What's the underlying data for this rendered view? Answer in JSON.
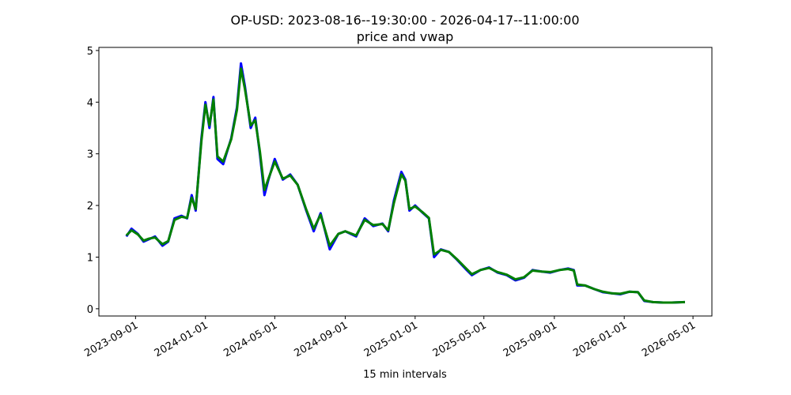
{
  "chart_data": {
    "type": "line",
    "title": "OP-USD: 2023-08-16--19:30:00 - 2026-04-17--11:00:00",
    "subtitle": "price and vwap",
    "x_label": "15 min intervals",
    "x": [
      "2023-08-16",
      "2023-08-25",
      "2023-09-05",
      "2023-09-15",
      "2023-09-25",
      "2023-10-05",
      "2023-10-18",
      "2023-10-28",
      "2023-11-08",
      "2023-11-20",
      "2023-11-30",
      "2023-12-08",
      "2023-12-15",
      "2023-12-25",
      "2024-01-01",
      "2024-01-08",
      "2024-01-15",
      "2024-01-22",
      "2024-02-01",
      "2024-02-15",
      "2024-02-25",
      "2024-03-03",
      "2024-03-10",
      "2024-03-20",
      "2024-03-28",
      "2024-04-05",
      "2024-04-13",
      "2024-04-20",
      "2024-05-01",
      "2024-05-15",
      "2024-05-28",
      "2024-06-10",
      "2024-06-25",
      "2024-07-08",
      "2024-07-20",
      "2024-08-05",
      "2024-08-20",
      "2024-09-01",
      "2024-09-20",
      "2024-10-05",
      "2024-10-20",
      "2024-11-05",
      "2024-11-15",
      "2024-11-25",
      "2024-12-08",
      "2024-12-15",
      "2024-12-22",
      "2025-01-01",
      "2025-01-15",
      "2025-01-25",
      "2025-02-03",
      "2025-02-15",
      "2025-03-01",
      "2025-03-15",
      "2025-04-01",
      "2025-04-10",
      "2025-04-25",
      "2025-05-10",
      "2025-05-25",
      "2025-06-10",
      "2025-06-25",
      "2025-07-10",
      "2025-07-25",
      "2025-08-10",
      "2025-08-25",
      "2025-09-10",
      "2025-09-25",
      "2025-10-05",
      "2025-10-11",
      "2025-10-25",
      "2025-11-10",
      "2025-11-25",
      "2025-12-10",
      "2025-12-25",
      "2026-01-10",
      "2026-01-25",
      "2026-02-05",
      "2026-02-20",
      "2026-03-10",
      "2026-03-25",
      "2026-04-17"
    ],
    "series": [
      {
        "color": "#0000ff",
        "values": [
          1.4,
          1.55,
          1.45,
          1.3,
          1.35,
          1.4,
          1.22,
          1.3,
          1.75,
          1.8,
          1.75,
          2.2,
          1.9,
          3.3,
          4.0,
          3.5,
          4.1,
          2.9,
          2.8,
          3.3,
          3.9,
          4.75,
          4.3,
          3.5,
          3.7,
          3.0,
          2.2,
          2.5,
          2.9,
          2.5,
          2.6,
          2.4,
          1.9,
          1.5,
          1.85,
          1.15,
          1.45,
          1.5,
          1.4,
          1.75,
          1.6,
          1.65,
          1.5,
          2.1,
          2.65,
          2.5,
          1.9,
          2.0,
          1.85,
          1.75,
          1.0,
          1.15,
          1.1,
          0.95,
          0.75,
          0.65,
          0.75,
          0.8,
          0.7,
          0.65,
          0.55,
          0.6,
          0.75,
          0.72,
          0.7,
          0.75,
          0.78,
          0.75,
          0.45,
          0.45,
          0.38,
          0.32,
          0.3,
          0.28,
          0.33,
          0.32,
          0.15,
          0.13,
          0.12,
          0.12,
          0.13
        ]
      },
      {
        "color": "#008000",
        "values": [
          1.42,
          1.52,
          1.44,
          1.32,
          1.36,
          1.38,
          1.25,
          1.31,
          1.72,
          1.78,
          1.76,
          2.15,
          1.93,
          3.25,
          3.95,
          3.55,
          4.05,
          2.95,
          2.85,
          3.28,
          3.85,
          4.65,
          4.25,
          3.55,
          3.65,
          3.05,
          2.3,
          2.52,
          2.85,
          2.52,
          2.58,
          2.4,
          1.92,
          1.55,
          1.82,
          1.22,
          1.45,
          1.5,
          1.42,
          1.72,
          1.62,
          1.64,
          1.52,
          2.05,
          2.6,
          2.48,
          1.93,
          1.98,
          1.86,
          1.76,
          1.05,
          1.14,
          1.1,
          0.96,
          0.77,
          0.67,
          0.75,
          0.79,
          0.71,
          0.66,
          0.57,
          0.61,
          0.74,
          0.72,
          0.71,
          0.75,
          0.77,
          0.74,
          0.47,
          0.45,
          0.38,
          0.33,
          0.3,
          0.29,
          0.33,
          0.32,
          0.16,
          0.13,
          0.12,
          0.12,
          0.13
        ]
      }
    ],
    "xlim": [
      "2023-06-29",
      "2026-06-03"
    ],
    "xticks": [
      "2023-09-01",
      "2024-01-01",
      "2024-05-01",
      "2024-09-01",
      "2025-01-01",
      "2025-05-01",
      "2025-09-01",
      "2026-01-01",
      "2026-05-01"
    ],
    "ylim": [
      -0.14,
      5.06
    ],
    "yticks": [
      0,
      1,
      2,
      3,
      4,
      5
    ],
    "grid": false
  }
}
